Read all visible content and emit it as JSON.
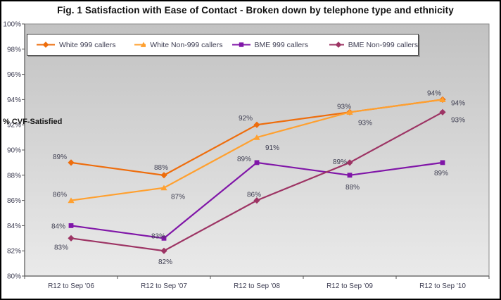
{
  "chart_data": {
    "type": "line",
    "title": "Fig. 1 Satisfaction with Ease of Contact - Broken down by telephone type and ethnicity",
    "ylabel": "% CVF-Satisfied",
    "xlabel": "",
    "categories": [
      "R12 to Sep '06",
      "R12 to Sep '07",
      "R12 to Sep '08",
      "R12 to Sep '09",
      "R12 to Sep '10"
    ],
    "series": [
      {
        "name": "White 999 callers",
        "color": "#ee6d0c",
        "marker": "diamond",
        "values": [
          89,
          88,
          92,
          93,
          94
        ]
      },
      {
        "name": "White Non-999 callers",
        "color": "#ffa02f",
        "marker": "triangle",
        "values": [
          86,
          87,
          91,
          93,
          94
        ]
      },
      {
        "name": "BME 999 callers",
        "color": "#8016a8",
        "marker": "square",
        "values": [
          84,
          83,
          89,
          88,
          89
        ]
      },
      {
        "name": "BME Non-999 callers",
        "color": "#9d3464",
        "marker": "diamond",
        "values": [
          83,
          82,
          86,
          89,
          93
        ]
      }
    ],
    "ylim": [
      80,
      100
    ],
    "ytick_step": 2,
    "ytick_labels": [
      "80%",
      "82%",
      "84%",
      "86%",
      "88%",
      "90%",
      "92%",
      "94%",
      "96%",
      "98%",
      "100%"
    ],
    "data_labels": true,
    "data_label_format": "{value}%",
    "grid": false,
    "legend_position": "top-inside",
    "plot_background": {
      "gradient_top": "#c2c2c2",
      "gradient_bottom": "#eaeaea"
    },
    "text_color": "#3d3d52"
  }
}
